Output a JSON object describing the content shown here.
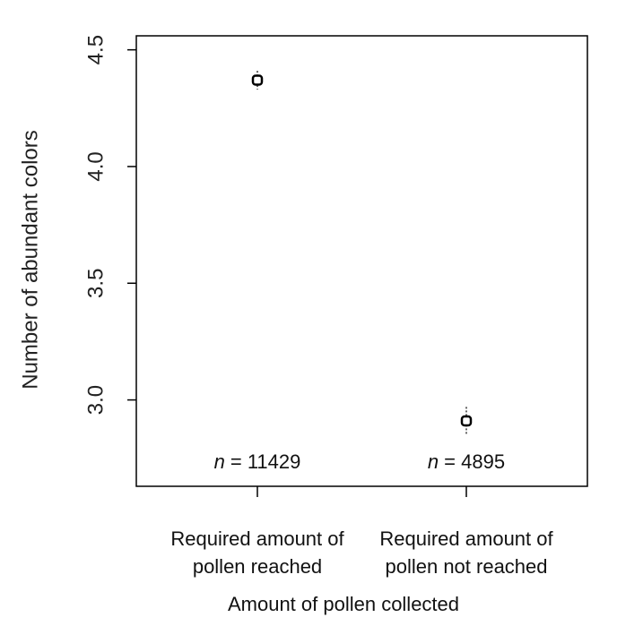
{
  "chart_data": {
    "type": "errorpoint",
    "categories": [
      "Required amount of pollen reached",
      "Required amount of pollen not reached"
    ],
    "values": [
      4.37,
      2.91
    ],
    "errors": [
      0.04,
      0.06
    ],
    "color": "#000000",
    "ylim": [
      2.63,
      4.56
    ],
    "yticks": [
      {
        "value": 3,
        "label": "3.0"
      },
      3.5,
      {
        "value": 4,
        "label": "4.0"
      },
      4.5
    ],
    "y_label": "Number of abundant colors",
    "x_label": "Amount of pollen collected",
    "annotations": [
      {
        "symbol": "n",
        "text": "= 11429"
      },
      {
        "symbol": "n",
        "text": "= 4895"
      }
    ]
  }
}
